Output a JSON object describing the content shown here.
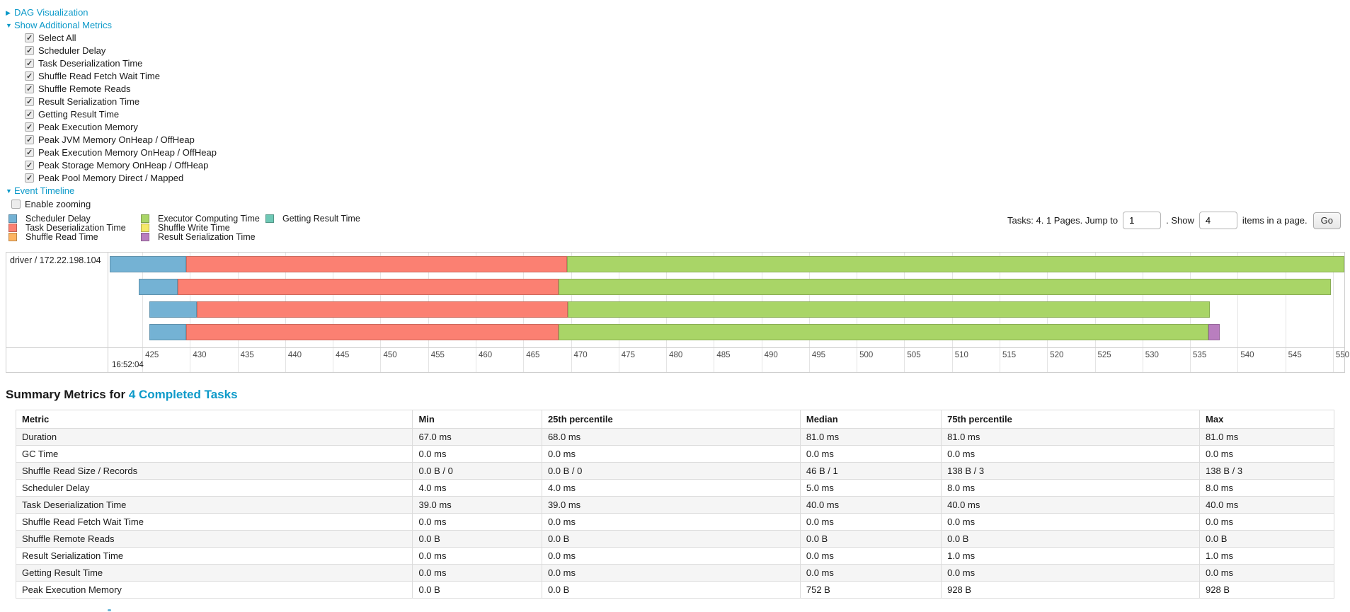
{
  "sections": {
    "dag": {
      "arrow": "▶",
      "label": "DAG Visualization"
    },
    "additional_metrics": {
      "arrow": "▼",
      "label": "Show Additional Metrics"
    },
    "event_timeline": {
      "arrow": "▼",
      "label": "Event Timeline"
    }
  },
  "additional_metrics": {
    "items": [
      "Select All",
      "Scheduler Delay",
      "Task Deserialization Time",
      "Shuffle Read Fetch Wait Time",
      "Shuffle Remote Reads",
      "Result Serialization Time",
      "Getting Result Time",
      "Peak Execution Memory",
      "Peak JVM Memory OnHeap / OffHeap",
      "Peak Execution Memory OnHeap / OffHeap",
      "Peak Storage Memory OnHeap / OffHeap",
      "Peak Pool Memory Direct / Mapped"
    ],
    "all_checked": true
  },
  "enable_zooming": {
    "label": "Enable zooming",
    "checked": false
  },
  "colors": {
    "link": "#0d9ac9",
    "scheduler_delay": "#74B2D4",
    "task_deserialization": "#FB8072",
    "shuffle_read": "#FDB462",
    "executor_computing": "#A9D567",
    "shuffle_write": "#F5E96A",
    "result_serialization": "#B97EBF",
    "getting_result": "#6EC8B5"
  },
  "legend": {
    "columns": [
      [
        {
          "type": "scheduler_delay",
          "label": "Scheduler Delay"
        },
        {
          "type": "task_deserialization",
          "label": "Task Deserialization Time"
        },
        {
          "type": "shuffle_read",
          "label": "Shuffle Read Time"
        }
      ],
      [
        {
          "type": "executor_computing",
          "label": "Executor Computing Time"
        },
        {
          "type": "shuffle_write",
          "label": "Shuffle Write Time"
        },
        {
          "type": "result_serialization",
          "label": "Result Serialization Time"
        }
      ],
      [
        {
          "type": "getting_result",
          "label": "Getting Result Time"
        }
      ]
    ],
    "column_lefts": [
      12,
      199,
      375
    ]
  },
  "pagination": {
    "prefix": "Tasks: 4. 1 Pages. Jump to",
    "jump_value": "1",
    "mid": ". Show",
    "show_value": "4",
    "suffix": "items in a page.",
    "go_label": "Go"
  },
  "timeline": {
    "group_label": "driver / 172.22.198.104",
    "window_min_ms": 421.5,
    "window_max_ms": 551.2,
    "tick_start": 425,
    "tick_end": 550,
    "tick_step": 5,
    "major_label": "16:52:04",
    "row_top_start": 5,
    "row_pitch": 32,
    "tasks": [
      {
        "segments": [
          {
            "type": "scheduler_delay",
            "from": 421.6,
            "to": 429.6
          },
          {
            "type": "task_deserialization",
            "from": 429.6,
            "to": 469.6
          },
          {
            "type": "executor_computing",
            "from": 469.6,
            "to": 551.2
          }
        ]
      },
      {
        "segments": [
          {
            "type": "scheduler_delay",
            "from": 424.6,
            "to": 428.7
          },
          {
            "type": "task_deserialization",
            "from": 428.7,
            "to": 468.7
          },
          {
            "type": "executor_computing",
            "from": 468.7,
            "to": 549.8
          }
        ]
      },
      {
        "segments": [
          {
            "type": "scheduler_delay",
            "from": 425.7,
            "to": 430.7
          },
          {
            "type": "task_deserialization",
            "from": 430.7,
            "to": 469.7
          },
          {
            "type": "executor_computing",
            "from": 469.7,
            "to": 537.1
          }
        ]
      },
      {
        "segments": [
          {
            "type": "scheduler_delay",
            "from": 425.7,
            "to": 429.6
          },
          {
            "type": "task_deserialization",
            "from": 429.6,
            "to": 468.7
          },
          {
            "type": "executor_computing",
            "from": 468.7,
            "to": 536.9
          },
          {
            "type": "result_serialization",
            "from": 536.9,
            "to": 538.1
          }
        ]
      }
    ]
  },
  "summary": {
    "title_prefix": "Summary Metrics for ",
    "title_link": "4 Completed Tasks"
  },
  "summary_table": {
    "columns": [
      "Metric",
      "Min",
      "25th percentile",
      "Median",
      "75th percentile",
      "Max"
    ],
    "col_widths": [
      "30.1%",
      "9.8%",
      "19.6%",
      "10.7%",
      "19.6%",
      "10.2%"
    ],
    "rows": [
      [
        "Duration",
        "67.0 ms",
        "68.0 ms",
        "81.0 ms",
        "81.0 ms",
        "81.0 ms"
      ],
      [
        "GC Time",
        "0.0 ms",
        "0.0 ms",
        "0.0 ms",
        "0.0 ms",
        "0.0 ms"
      ],
      [
        "Shuffle Read Size / Records",
        "0.0 B / 0",
        "0.0 B / 0",
        "46 B / 1",
        "138 B / 3",
        "138 B / 3"
      ],
      [
        "Scheduler Delay",
        "4.0 ms",
        "4.0 ms",
        "5.0 ms",
        "8.0 ms",
        "8.0 ms"
      ],
      [
        "Task Deserialization Time",
        "39.0 ms",
        "39.0 ms",
        "40.0 ms",
        "40.0 ms",
        "40.0 ms"
      ],
      [
        "Shuffle Read Fetch Wait Time",
        "0.0 ms",
        "0.0 ms",
        "0.0 ms",
        "0.0 ms",
        "0.0 ms"
      ],
      [
        "Shuffle Remote Reads",
        "0.0 B",
        "0.0 B",
        "0.0 B",
        "0.0 B",
        "0.0 B"
      ],
      [
        "Result Serialization Time",
        "0.0 ms",
        "0.0 ms",
        "0.0 ms",
        "1.0 ms",
        "1.0 ms"
      ],
      [
        "Getting Result Time",
        "0.0 ms",
        "0.0 ms",
        "0.0 ms",
        "0.0 ms",
        "0.0 ms"
      ],
      [
        "Peak Execution Memory",
        "0.0 B",
        "0.0 B",
        "752 B",
        "928 B",
        "928 B"
      ]
    ]
  }
}
